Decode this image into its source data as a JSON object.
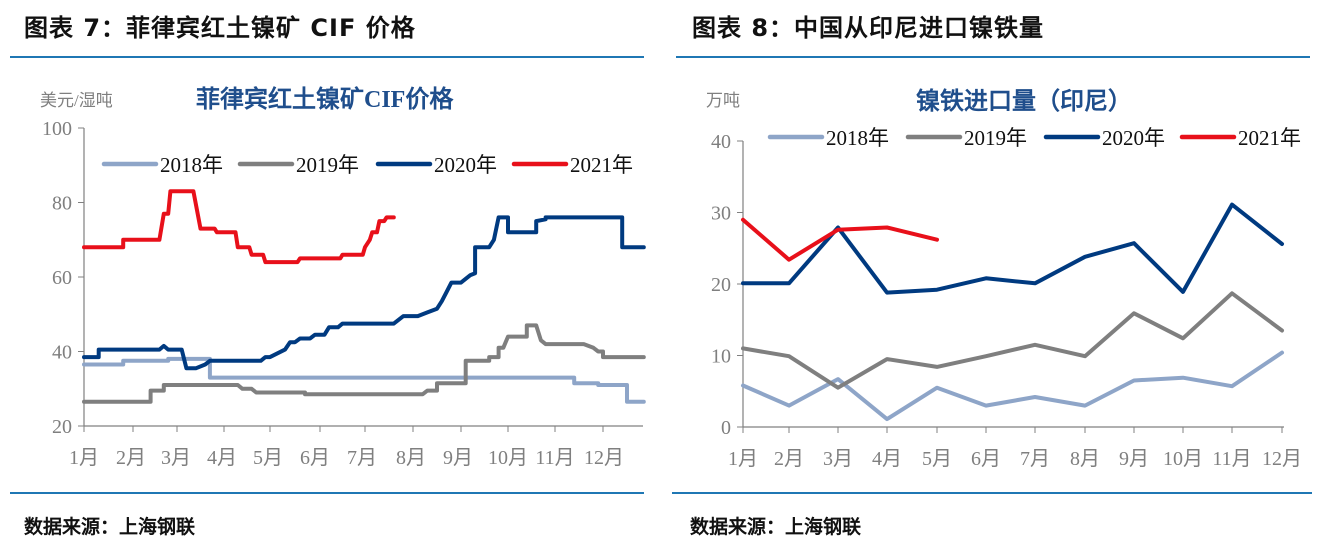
{
  "left": {
    "figure_title": "图表 7：菲律宾红土镍矿 CIF 价格",
    "source": "数据来源：上海钢联"
  },
  "right": {
    "figure_title": "图表 8：中国从印尼进口镍铁量",
    "source": "数据来源：上海钢联"
  },
  "colors": {
    "2018": "#8ea5c8",
    "2019": "#7f7f7f",
    "2020": "#003a80",
    "2021": "#e8101a",
    "rule": "#1f77b4",
    "title": "#1f4e8c",
    "axis": "#808080"
  },
  "chart_data": [
    {
      "type": "line",
      "title": "菲律宾红土镍矿CIF价格",
      "ylabel": "美元/湿吨",
      "xlabel": "",
      "ylim": [
        20,
        100
      ],
      "yticks": [
        20,
        40,
        60,
        80,
        100
      ],
      "categories": [
        "1月",
        "2月",
        "3月",
        "4月",
        "5月",
        "6月",
        "7月",
        "8月",
        "9月",
        "10月",
        "11月",
        "12月"
      ],
      "legend": [
        "2018年",
        "2019年",
        "2020年",
        "2021年"
      ],
      "legend_position": "top",
      "grid": false,
      "step_series": true,
      "series": [
        {
          "name": "2018年",
          "points": [
            [
              1,
              36.5
            ],
            [
              1.8,
              36.5
            ],
            [
              1.8,
              37.5
            ],
            [
              2.8,
              37.5
            ],
            [
              2.8,
              38
            ],
            [
              3.7,
              38
            ],
            [
              3.7,
              33
            ],
            [
              11.4,
              33
            ],
            [
              11.4,
              31.5
            ],
            [
              11.9,
              31.5
            ],
            [
              11.9,
              31
            ],
            [
              12.5,
              31
            ],
            [
              12.5,
              26.5
            ],
            [
              12.85,
              26.5
            ]
          ]
        },
        {
          "name": "2019年",
          "points": [
            [
              1,
              26.5
            ],
            [
              2.4,
              26.5
            ],
            [
              2.4,
              29.5
            ],
            [
              2.7,
              29.5
            ],
            [
              2.7,
              31
            ],
            [
              4.3,
              31
            ],
            [
              4.4,
              30
            ],
            [
              4.6,
              30
            ],
            [
              4.7,
              29
            ],
            [
              5.7,
              29
            ],
            [
              5.7,
              28.5
            ],
            [
              8.2,
              28.5
            ],
            [
              8.3,
              29.5
            ],
            [
              8.5,
              29.5
            ],
            [
              8.5,
              31.5
            ],
            [
              9.1,
              31.5
            ],
            [
              9.1,
              37.5
            ],
            [
              9.6,
              37.5
            ],
            [
              9.6,
              38.5
            ],
            [
              9.8,
              38.5
            ],
            [
              9.8,
              41
            ],
            [
              9.9,
              41
            ],
            [
              10.0,
              44
            ],
            [
              10.4,
              44
            ],
            [
              10.4,
              47
            ],
            [
              10.6,
              47
            ],
            [
              10.7,
              43
            ],
            [
              10.8,
              42
            ],
            [
              11.6,
              42
            ],
            [
              11.8,
              41
            ],
            [
              11.9,
              40
            ],
            [
              12.0,
              40
            ],
            [
              12.0,
              38.5
            ],
            [
              12.85,
              38.5
            ]
          ]
        },
        {
          "name": "2020年",
          "points": [
            [
              1,
              38.5
            ],
            [
              1.3,
              38.5
            ],
            [
              1.3,
              40.5
            ],
            [
              2.6,
              40.5
            ],
            [
              2.7,
              41.5
            ],
            [
              2.8,
              40.5
            ],
            [
              3.1,
              40.5
            ],
            [
              3.2,
              35.5
            ],
            [
              3.4,
              35.5
            ],
            [
              3.6,
              36.5
            ],
            [
              3.7,
              37.5
            ],
            [
              4.8,
              37.5
            ],
            [
              4.9,
              38.5
            ],
            [
              5.0,
              38.5
            ],
            [
              5.3,
              40.5
            ],
            [
              5.4,
              42.5
            ],
            [
              5.5,
              42.5
            ],
            [
              5.6,
              43.5
            ],
            [
              5.8,
              43.5
            ],
            [
              5.9,
              44.5
            ],
            [
              6.1,
              44.5
            ],
            [
              6.2,
              46.5
            ],
            [
              6.4,
              46.5
            ],
            [
              6.5,
              47.5
            ],
            [
              7.6,
              47.5
            ],
            [
              7.7,
              48.5
            ],
            [
              7.8,
              49.5
            ],
            [
              8.1,
              49.5
            ],
            [
              8.3,
              50.5
            ],
            [
              8.5,
              51.5
            ],
            [
              8.6,
              53.5
            ],
            [
              8.7,
              56
            ],
            [
              8.8,
              58.5
            ],
            [
              9.0,
              58.5
            ],
            [
              9.2,
              60.5
            ],
            [
              9.3,
              61
            ],
            [
              9.3,
              68
            ],
            [
              9.6,
              68
            ],
            [
              9.7,
              70
            ],
            [
              9.8,
              76
            ],
            [
              10.0,
              76
            ],
            [
              10.0,
              72
            ],
            [
              10.6,
              72
            ],
            [
              10.6,
              75
            ],
            [
              10.8,
              75.5
            ],
            [
              10.8,
              76
            ],
            [
              12.4,
              76
            ],
            [
              12.4,
              68
            ],
            [
              12.85,
              68
            ]
          ]
        },
        {
          "name": "2021年",
          "points": [
            [
              1,
              68
            ],
            [
              1.8,
              68
            ],
            [
              1.8,
              70
            ],
            [
              2.6,
              70
            ],
            [
              2.7,
              77
            ],
            [
              2.8,
              77
            ],
            [
              2.85,
              83
            ],
            [
              3.35,
              83
            ],
            [
              3.5,
              73
            ],
            [
              3.8,
              73
            ],
            [
              3.85,
              72
            ],
            [
              4.25,
              72
            ],
            [
              4.3,
              68
            ],
            [
              4.55,
              68
            ],
            [
              4.6,
              66
            ],
            [
              4.85,
              66
            ],
            [
              4.9,
              64
            ],
            [
              5.55,
              64
            ],
            [
              5.6,
              65
            ],
            [
              6.45,
              65
            ],
            [
              6.5,
              66
            ],
            [
              6.95,
              66
            ],
            [
              7.0,
              68
            ],
            [
              7.1,
              70
            ],
            [
              7.15,
              72
            ],
            [
              7.25,
              72
            ],
            [
              7.3,
              75
            ],
            [
              7.4,
              75
            ],
            [
              7.45,
              76
            ],
            [
              7.6,
              76
            ]
          ]
        }
      ]
    },
    {
      "type": "line",
      "title": "镍铁进口量（印尼）",
      "ylabel": "万吨",
      "xlabel": "",
      "ylim": [
        0,
        40
      ],
      "yticks": [
        0,
        10,
        20,
        30,
        40
      ],
      "categories": [
        "1月",
        "2月",
        "3月",
        "4月",
        "5月",
        "6月",
        "7月",
        "8月",
        "9月",
        "10月",
        "11月",
        "12月"
      ],
      "legend": [
        "2018年",
        "2019年",
        "2020年",
        "2021年"
      ],
      "legend_position": "top",
      "grid": false,
      "series": [
        {
          "name": "2018年",
          "values": [
            5.8,
            3.0,
            6.7,
            1.1,
            5.5,
            3.0,
            4.2,
            3.0,
            6.5,
            6.9,
            5.7,
            10.4
          ]
        },
        {
          "name": "2019年",
          "values": [
            11.0,
            9.9,
            5.5,
            9.5,
            8.4,
            9.9,
            11.5,
            9.9,
            15.9,
            12.4,
            18.7,
            13.5
          ]
        },
        {
          "name": "2020年",
          "values": [
            20.1,
            20.1,
            27.9,
            18.8,
            19.2,
            20.8,
            20.1,
            23.8,
            25.7,
            18.9,
            31.1,
            25.6
          ]
        },
        {
          "name": "2021年",
          "values": [
            29.0,
            23.4,
            27.6,
            27.9,
            26.2
          ]
        }
      ]
    }
  ]
}
